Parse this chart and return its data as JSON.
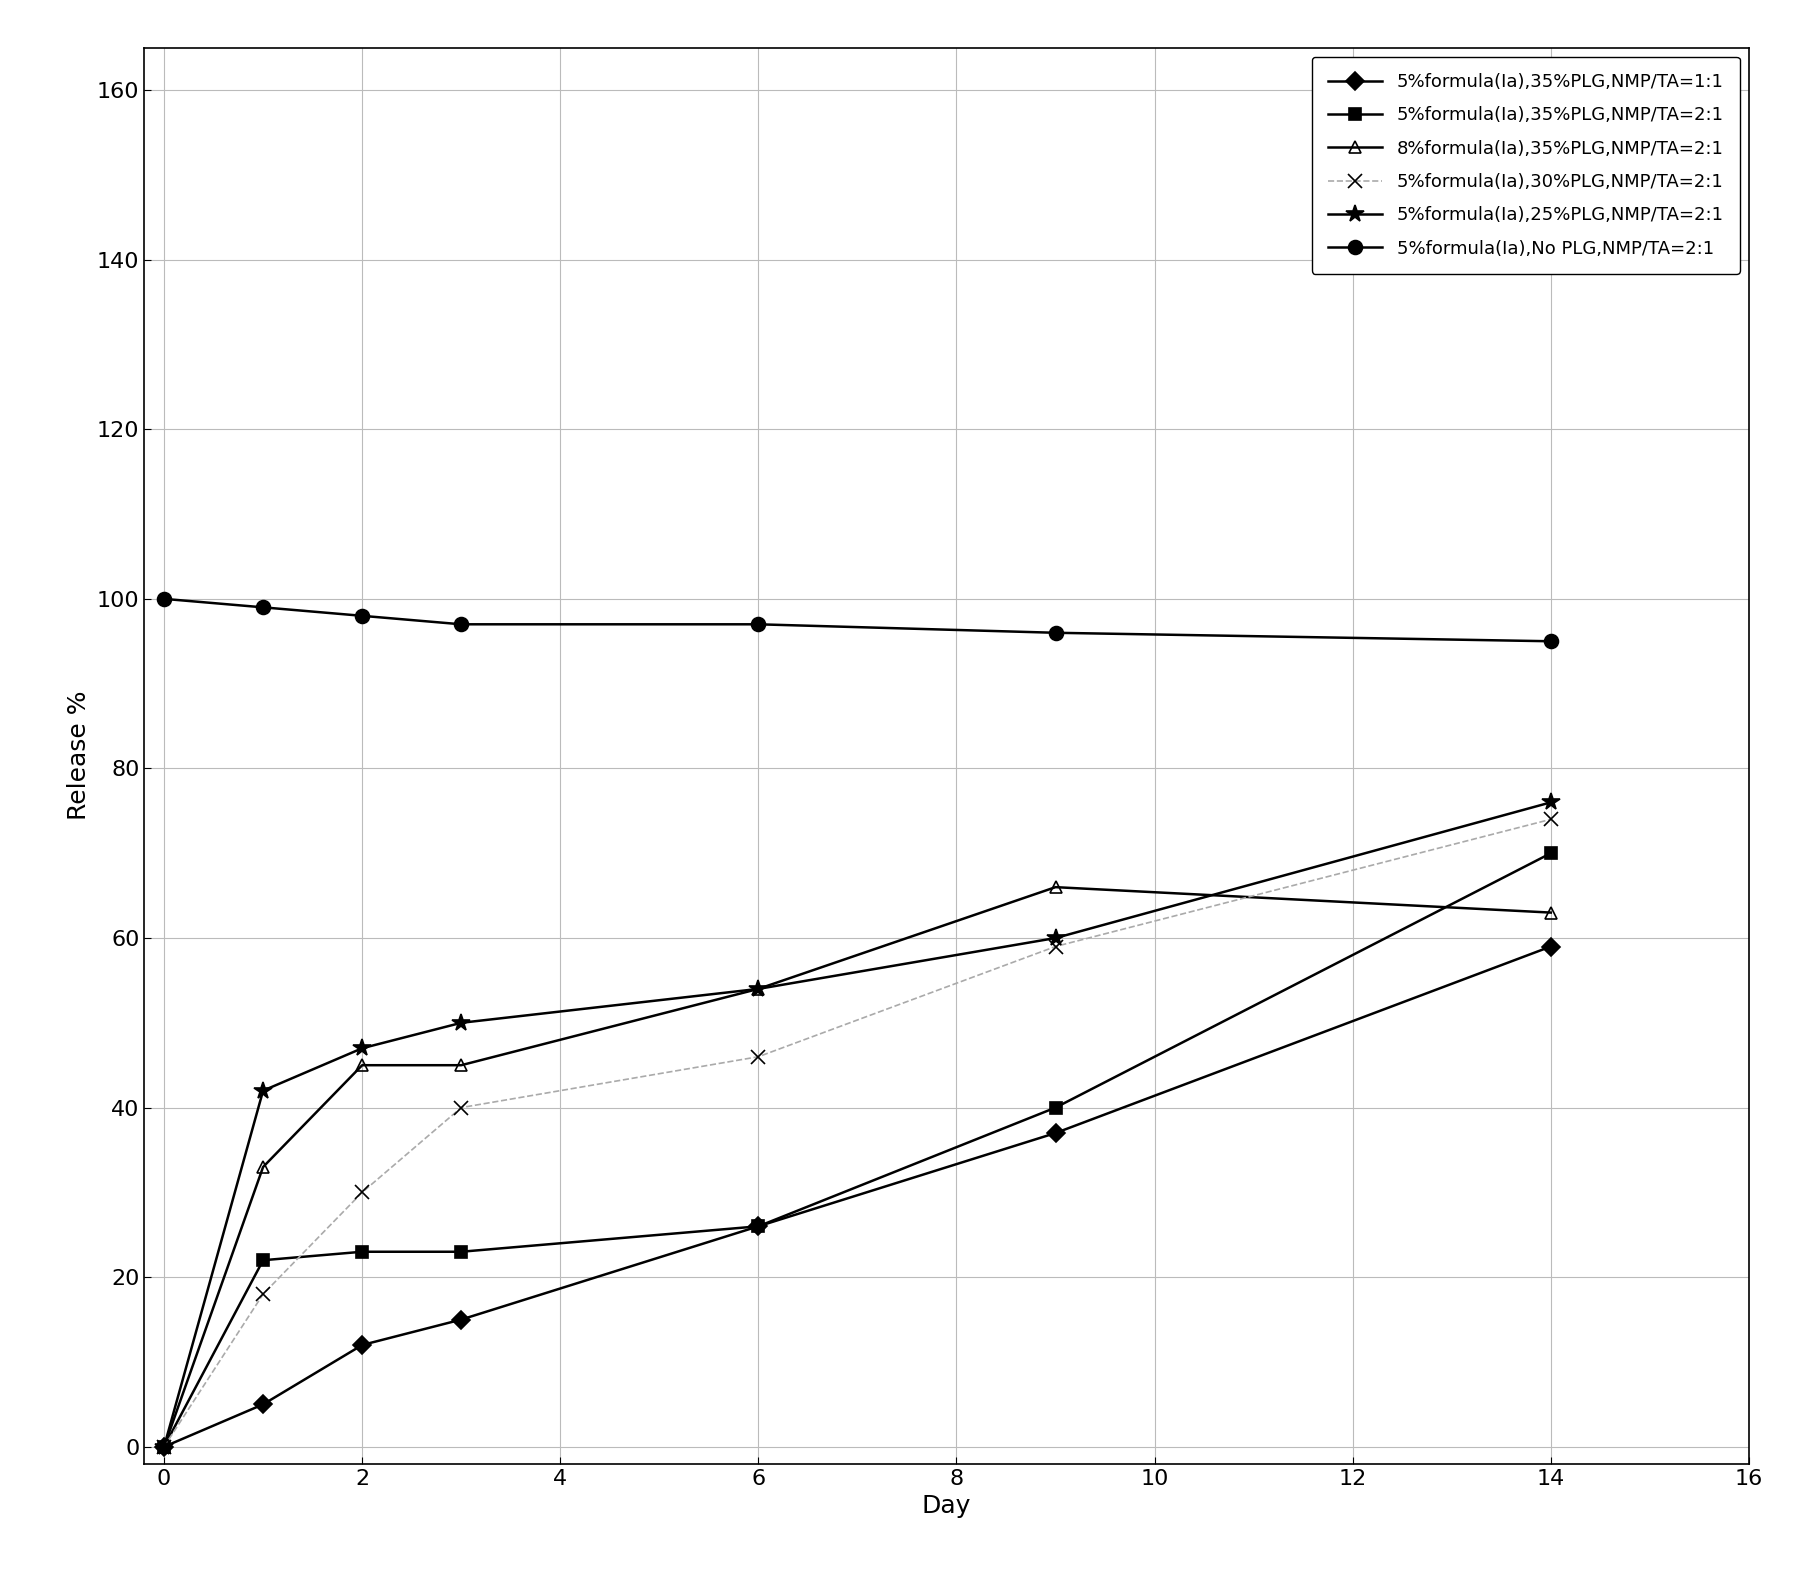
{
  "series": [
    {
      "label": "5%formula(Ia),35%PLG,NMP/TA=1:1",
      "x": [
        0,
        1,
        2,
        3,
        6,
        9,
        14
      ],
      "y": [
        0,
        5,
        12,
        15,
        26,
        37,
        59
      ],
      "marker": "D",
      "linestyle": "-",
      "color": "#000000",
      "markersize": 9,
      "linewidth": 1.8,
      "fillstyle": "full"
    },
    {
      "label": "5%formula(Ia),35%PLG,NMP/TA=2:1",
      "x": [
        0,
        1,
        2,
        3,
        6,
        9,
        14
      ],
      "y": [
        0,
        22,
        23,
        23,
        26,
        40,
        70
      ],
      "marker": "s",
      "linestyle": "-",
      "color": "#000000",
      "markersize": 9,
      "linewidth": 1.8,
      "fillstyle": "full"
    },
    {
      "label": "8%formula(Ia),35%PLG,NMP/TA=2:1",
      "x": [
        0,
        1,
        2,
        3,
        6,
        9,
        14
      ],
      "y": [
        0,
        33,
        45,
        45,
        54,
        66,
        63
      ],
      "marker": "^",
      "linestyle": "-",
      "color": "#000000",
      "markersize": 9,
      "linewidth": 1.8,
      "fillstyle": "none"
    },
    {
      "label": "5%formula(Ia),30%PLG,NMP/TA=2:1",
      "x": [
        0,
        1,
        2,
        3,
        6,
        9,
        14
      ],
      "y": [
        0,
        18,
        30,
        40,
        46,
        59,
        74
      ],
      "marker": "x",
      "linestyle": "--",
      "color": "#aaaaaa",
      "markersize": 10,
      "linewidth": 1.2,
      "fillstyle": "full"
    },
    {
      "label": "5%formula(Ia),25%PLG,NMP/TA=2:1",
      "x": [
        0,
        1,
        2,
        3,
        6,
        9,
        14
      ],
      "y": [
        0,
        42,
        47,
        50,
        54,
        60,
        76
      ],
      "marker": "*",
      "linestyle": "-",
      "color": "#000000",
      "markersize": 13,
      "linewidth": 1.8,
      "fillstyle": "full"
    },
    {
      "label": "5%formula(Ia),No PLG,NMP/TA=2:1",
      "x": [
        0,
        1,
        2,
        3,
        6,
        9,
        14
      ],
      "y": [
        100,
        99,
        98,
        97,
        97,
        96,
        95
      ],
      "marker": "o",
      "linestyle": "-",
      "color": "#000000",
      "markersize": 10,
      "linewidth": 1.8,
      "fillstyle": "full"
    }
  ],
  "xlabel": "Day",
  "ylabel": "Release %",
  "xlim": [
    -0.2,
    16
  ],
  "ylim": [
    -2,
    165
  ],
  "xticks": [
    0,
    2,
    4,
    6,
    8,
    10,
    12,
    14,
    16
  ],
  "yticks": [
    0,
    20,
    40,
    60,
    80,
    100,
    120,
    140,
    160
  ],
  "figsize": [
    18.03,
    15.91
  ],
  "dpi": 100,
  "grid": true,
  "background_color": "#ffffff",
  "xlabel_fontsize": 18,
  "ylabel_fontsize": 18,
  "tick_fontsize": 16,
  "legend_fontsize": 13
}
